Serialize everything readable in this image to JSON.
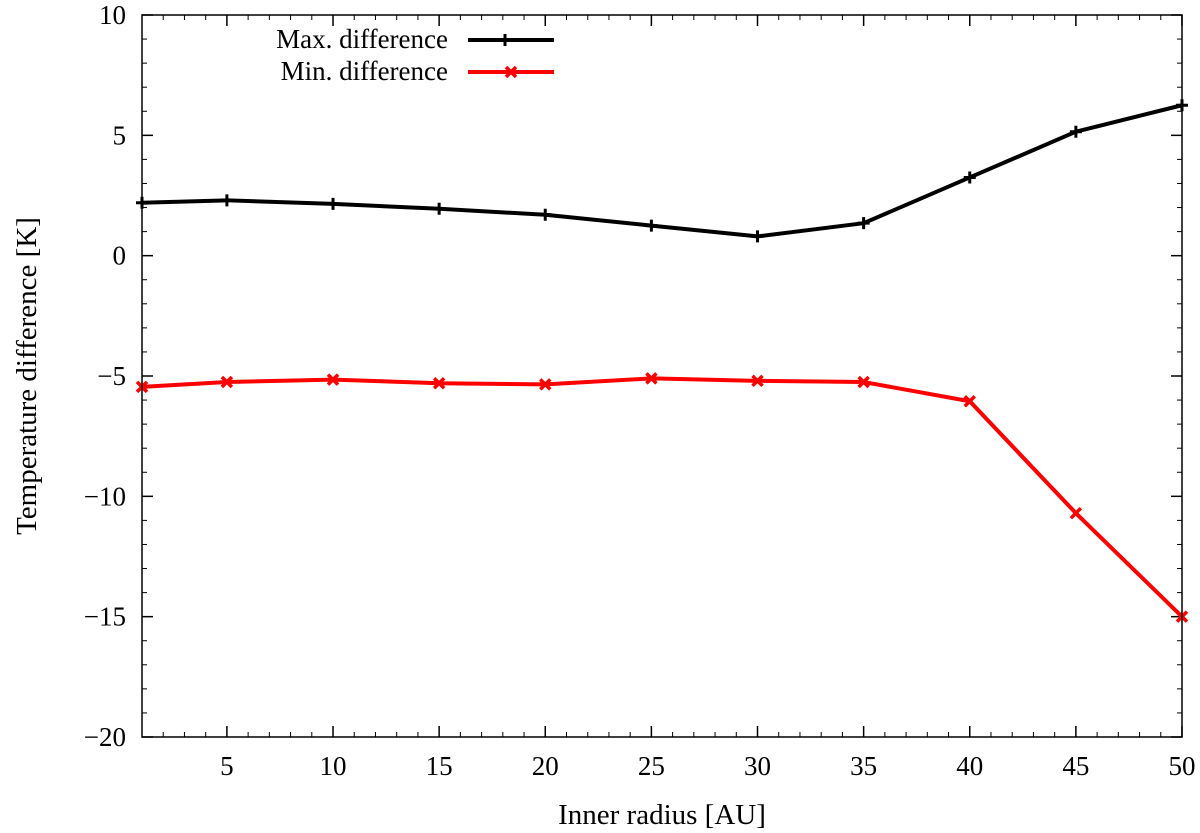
{
  "chart_data": {
    "type": "line",
    "title": "",
    "xlabel": "Inner radius [AU]",
    "ylabel": "Temperature difference [K]",
    "xlim": [
      1,
      50
    ],
    "ylim": [
      -20,
      10
    ],
    "xticks": [
      5,
      10,
      15,
      20,
      25,
      30,
      35,
      40,
      45,
      50
    ],
    "yticks": [
      -20,
      -15,
      -10,
      -5,
      0,
      5,
      10
    ],
    "ytick_labels": [
      "−20",
      "−15",
      "−10",
      "−5",
      "0",
      "5",
      "10"
    ],
    "grid": false,
    "legend_position": "top-left",
    "x": [
      1,
      5,
      10,
      15,
      20,
      25,
      30,
      35,
      40,
      45,
      50
    ],
    "series": [
      {
        "name": "Max. difference",
        "color": "#000000",
        "marker": "plus",
        "values": [
          2.2,
          2.3,
          2.15,
          1.95,
          1.7,
          1.25,
          0.8,
          1.35,
          3.25,
          5.15,
          6.25
        ]
      },
      {
        "name": "Min. difference",
        "color": "#ff0000",
        "marker": "x",
        "values": [
          -5.45,
          -5.25,
          -5.15,
          -5.3,
          -5.35,
          -5.1,
          -5.2,
          -5.25,
          -6.05,
          -10.7,
          -15.0
        ]
      }
    ]
  }
}
